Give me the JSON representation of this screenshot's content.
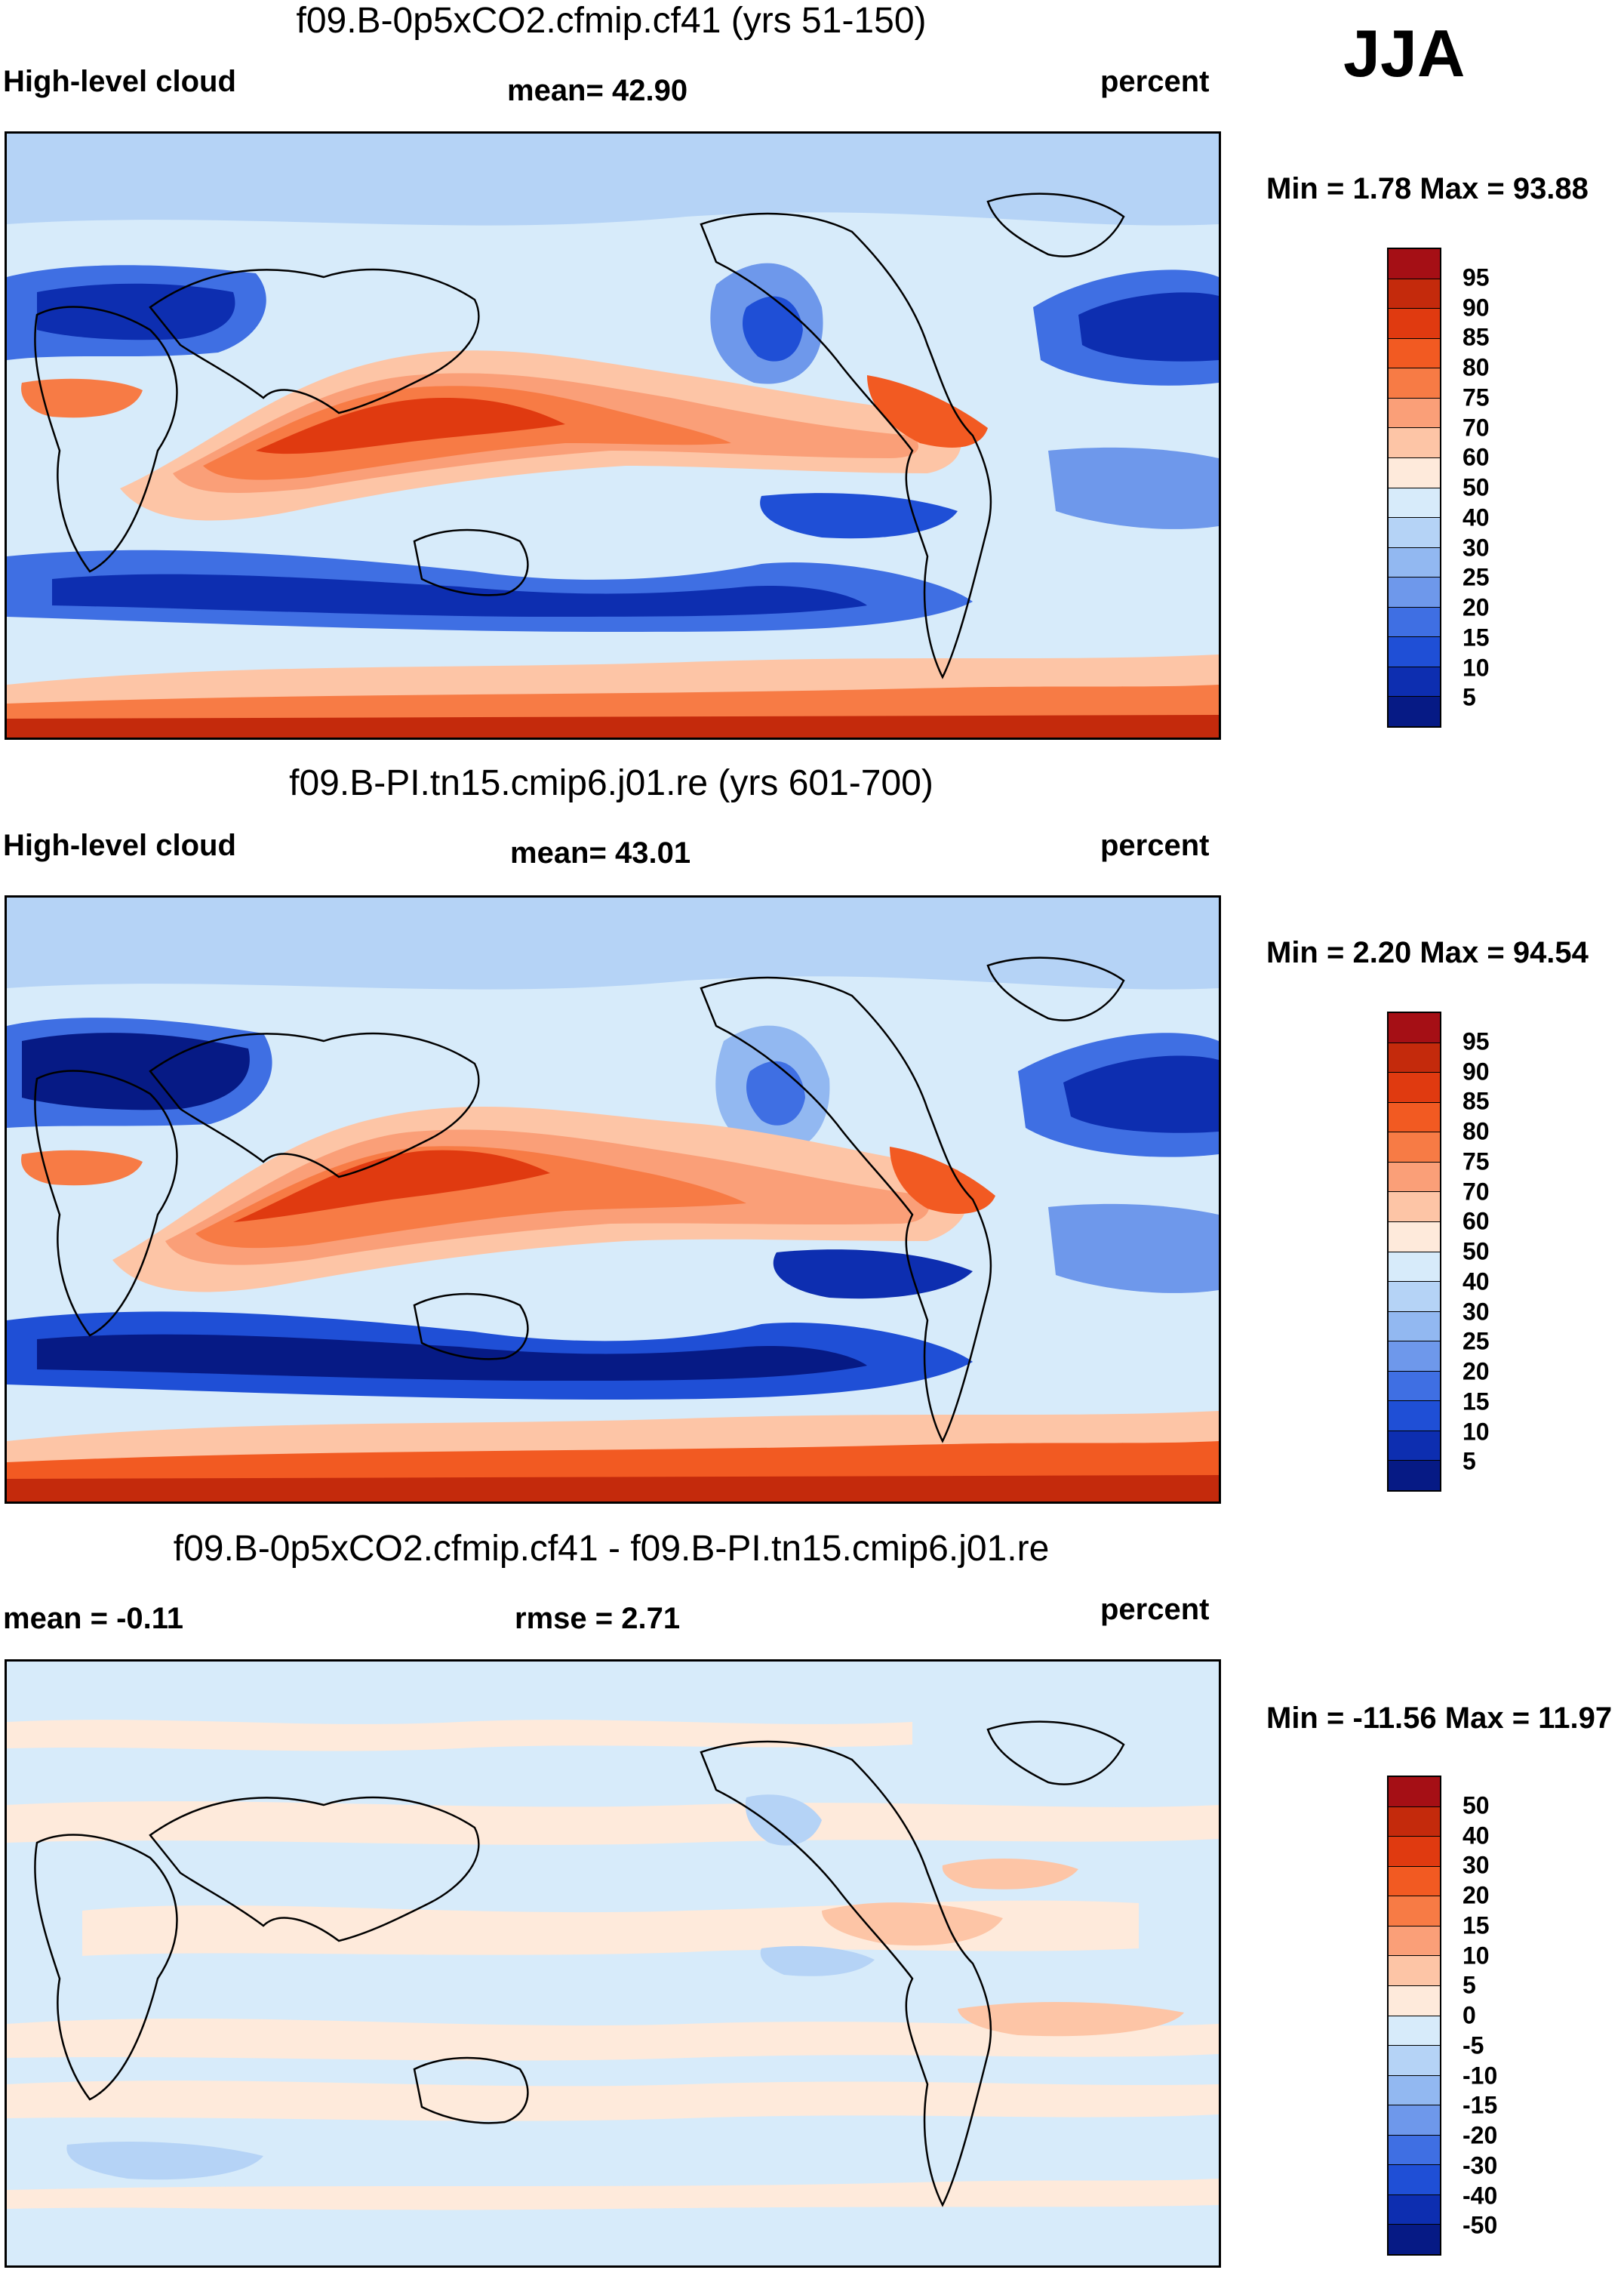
{
  "season": "JJA",
  "panels": [
    {
      "id": "p1",
      "title": "f09.B-0p5xCO2.cfmip.cf41 (yrs 51-150)",
      "left_label": "High-level cloud",
      "center_label": "mean=  42.90",
      "right_label": "percent",
      "minmax": "Min =   1.78 Max =  93.88"
    },
    {
      "id": "p2",
      "title": "f09.B-PI.tn15.cmip6.j01.re (yrs 601-700)",
      "left_label": "High-level cloud",
      "center_label": "mean=  43.01",
      "right_label": "percent",
      "minmax": "Min =   2.20 Max =  94.54"
    },
    {
      "id": "p3",
      "title": "f09.B-0p5xCO2.cfmip.cf41 - f09.B-PI.tn15.cmip6.j01.re",
      "left_label": "mean =  -0.11",
      "center_label": "rmse =   2.71",
      "right_label": "percent",
      "minmax": "Min = -11.56 Max =  11.97"
    }
  ],
  "colorbars": {
    "absolute": {
      "labels": [
        "95",
        "90",
        "85",
        "80",
        "75",
        "70",
        "60",
        "50",
        "40",
        "30",
        "25",
        "20",
        "15",
        "10",
        "5"
      ],
      "colors": [
        "#a50f15",
        "#c42a0c",
        "#e03a10",
        "#f25a22",
        "#f77b45",
        "#fa9f78",
        "#fdc5a6",
        "#feeadb",
        "#d7ebfa",
        "#b5d3f6",
        "#92b8f1",
        "#6e98eb",
        "#3f6fe3",
        "#1f4fd6",
        "#0d2eb0",
        "#061a85"
      ]
    },
    "difference": {
      "labels": [
        "50",
        "40",
        "30",
        "20",
        "15",
        "10",
        "5",
        "0",
        "-5",
        "-10",
        "-15",
        "-20",
        "-30",
        "-40",
        "-50"
      ],
      "colors": [
        "#a50f15",
        "#c42a0c",
        "#e03a10",
        "#f25a22",
        "#f77b45",
        "#fa9f78",
        "#fdc5a6",
        "#feeadb",
        "#d7ebfa",
        "#b5d3f6",
        "#92b8f1",
        "#6e98eb",
        "#3f6fe3",
        "#1f4fd6",
        "#0d2eb0",
        "#061a85"
      ]
    }
  }
}
